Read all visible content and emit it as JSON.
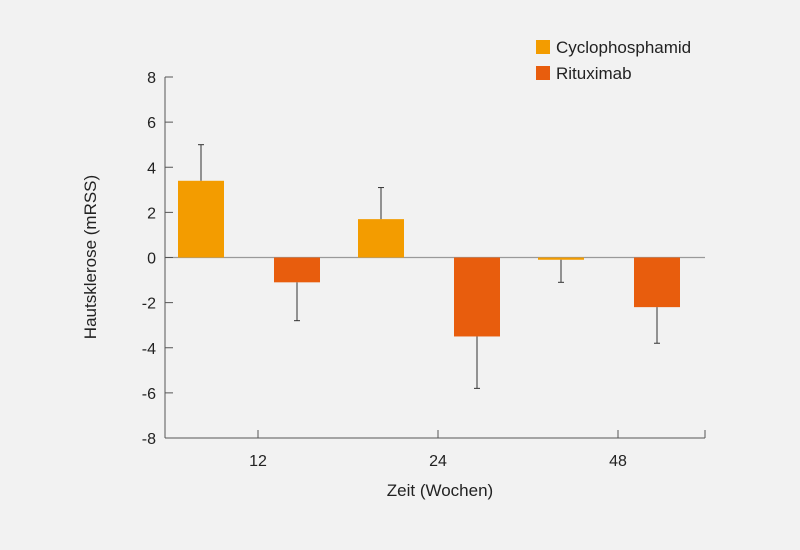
{
  "chart_data": {
    "type": "bar",
    "title": "",
    "xlabel": "Zeit (Wochen)",
    "ylabel": "Hautsklerose (mRSS)",
    "categories": [
      "12",
      "24",
      "48"
    ],
    "ylim": [
      -8,
      8
    ],
    "yticks": [
      "8",
      "6",
      "4",
      "2",
      "0",
      "-2",
      "-4",
      "-6",
      "-8"
    ],
    "grid": false,
    "legend_position": "top-right",
    "series": [
      {
        "name": "Cyclophosphamid",
        "color": "#f39c00",
        "values": [
          3.4,
          1.7,
          -0.1
        ],
        "error_upper": [
          1.6,
          1.4,
          0
        ],
        "error_lower": [
          0,
          0,
          1.0
        ]
      },
      {
        "name": "Rituximab",
        "color": "#e85d0d",
        "values": [
          -1.1,
          -3.5,
          -2.2
        ],
        "error_upper": [
          0,
          0,
          0
        ],
        "error_lower": [
          1.7,
          2.3,
          1.6
        ]
      }
    ]
  }
}
